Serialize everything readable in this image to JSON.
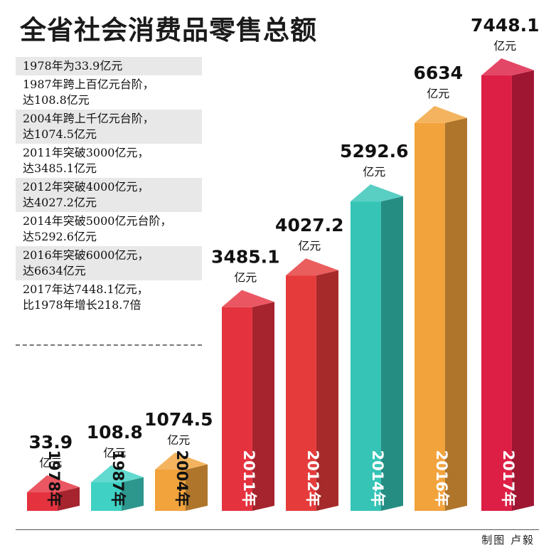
{
  "title": "全省社会消费品零售总额",
  "notes": [
    {
      "lines": [
        "1978年为33.9亿元"
      ],
      "shaded": true
    },
    {
      "lines": [
        "1987年跨上百亿元台阶，",
        "达108.8亿元"
      ],
      "shaded": false
    },
    {
      "lines": [
        "2004年跨上千亿元台阶，",
        "达1074.5亿元"
      ],
      "shaded": true
    },
    {
      "lines": [
        "2011年突破3000亿元，",
        "达3485.1亿元"
      ],
      "shaded": false
    },
    {
      "lines": [
        "2012年突破4000亿元，",
        "达4027.2亿元"
      ],
      "shaded": true
    },
    {
      "lines": [
        "2014年突破5000亿元台阶，",
        "达5292.6亿元"
      ],
      "shaded": false
    },
    {
      "lines": [
        "2016年突破6000亿元，",
        "达6634亿元"
      ],
      "shaded": true
    },
    {
      "lines": [
        "2017年达7448.1亿元，",
        "比1978年增长218.7倍"
      ],
      "shaded": false
    }
  ],
  "credit": "制图  卢毅",
  "chart_data": {
    "type": "bar",
    "title": "全省社会消费品零售总额",
    "unit": "亿元",
    "categories": [
      "1978年",
      "1987年",
      "2004年",
      "2011年",
      "2012年",
      "2014年",
      "2016年",
      "2017年"
    ],
    "values": [
      33.9,
      108.8,
      1074.5,
      3485.1,
      4027.2,
      5292.6,
      6634,
      7448.1
    ],
    "value_labels": [
      "33.9",
      "108.8",
      "1074.5",
      "3485.1",
      "4027.2",
      "5292.6",
      "6634",
      "7448.1"
    ],
    "colors": [
      "#e5323f",
      "#3ed1c4",
      "#f2a33c",
      "#e5323f",
      "#e63b3b",
      "#35c4b6",
      "#f2a33c",
      "#dd1f45"
    ],
    "note": "bar heights are not to scale for the first three bars"
  }
}
